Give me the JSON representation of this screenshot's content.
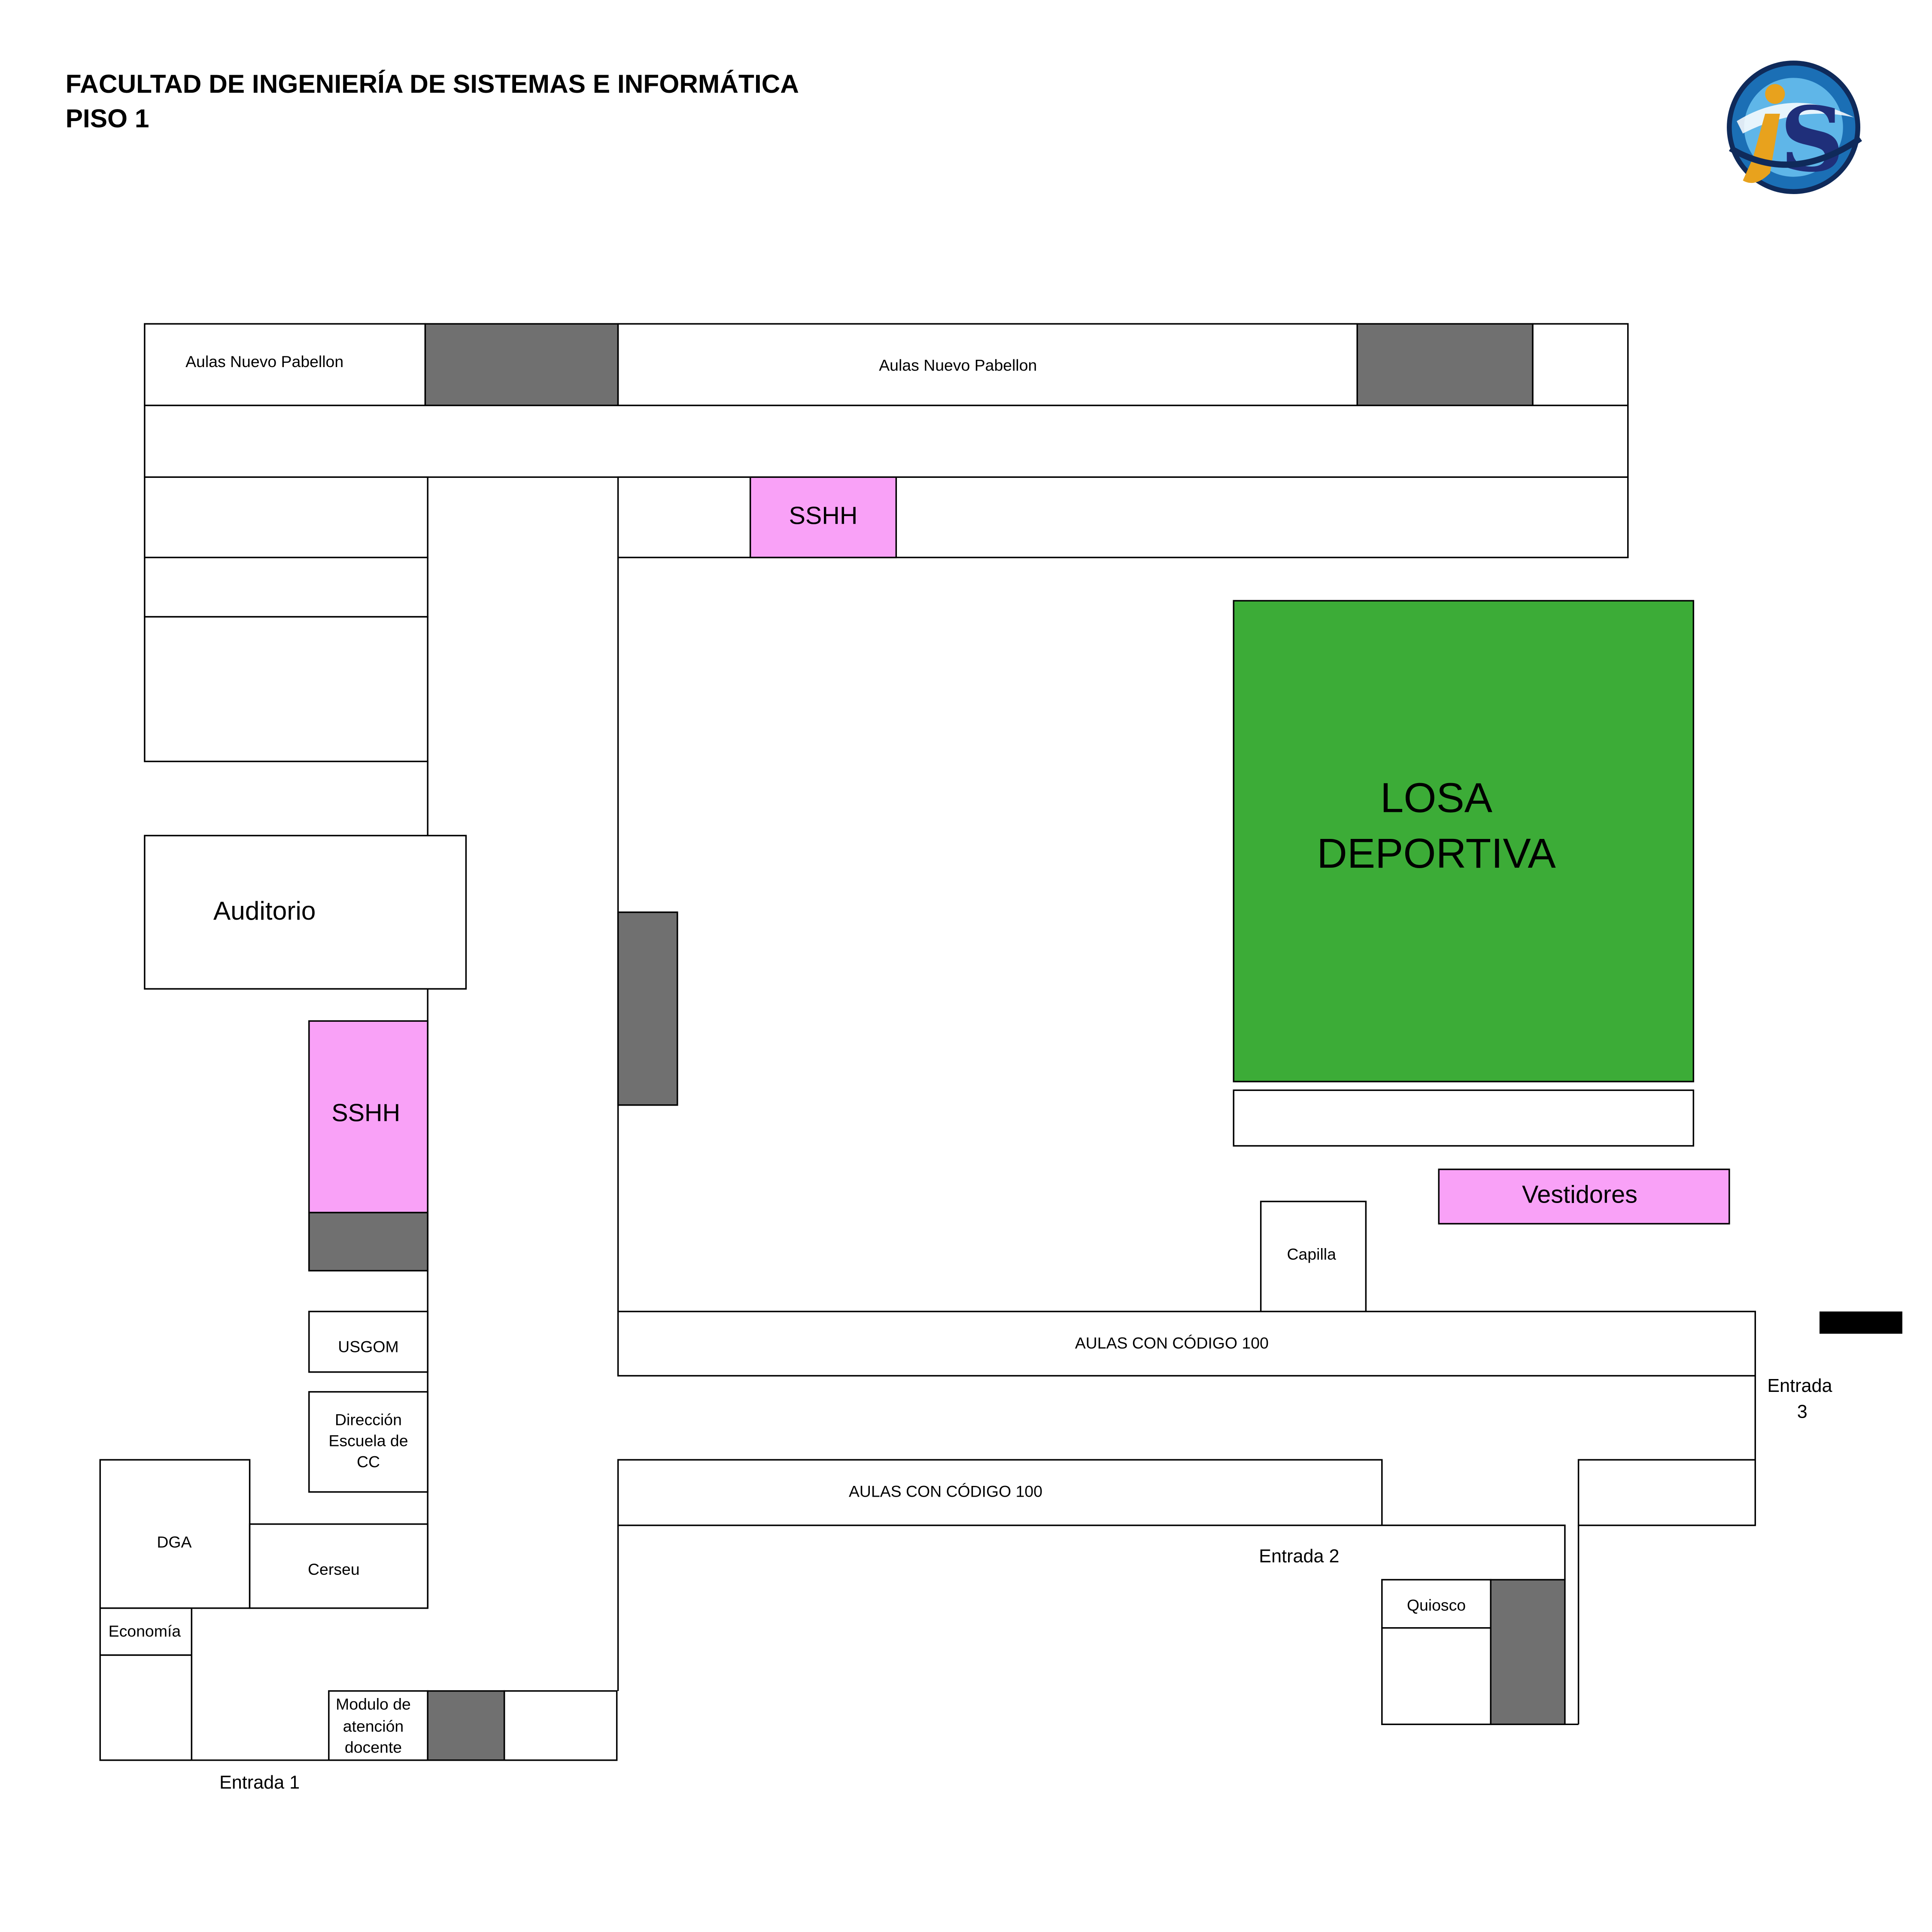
{
  "header": {
    "title": "FACULTAD DE INGENIERÍA DE SISTEMAS E INFORMÁTICA",
    "subtitle": "PISO 1"
  },
  "logo": {
    "icon": "fisi-logo-icon",
    "colors": {
      "ring": "#1b6fb5",
      "letter_i": "#e8a21d",
      "letter_s": "#1f2f7a"
    }
  },
  "colors": {
    "classroom": "#ffffff",
    "service": "#707070",
    "sshh": "#f9a1f7",
    "sports": "#3cac37"
  },
  "rooms": {
    "aulas_top_left": "Aulas Nuevo Pabellon",
    "aulas_top_center": "Aulas Nuevo Pabellon",
    "sshh_top": "SSHH",
    "sshh_left": "SSHH",
    "auditorio": "Auditorio",
    "losa_line1": "LOSA",
    "losa_line2": "DEPORTIVA",
    "vestidores": "Vestidores",
    "capilla": "Capilla",
    "aulas_100_upper": "AULAS CON CÓDIGO 100",
    "aulas_100_lower": "AULAS CON CÓDIGO 100",
    "usgom": "USGOM",
    "direccion_line1": "Dirección",
    "direccion_line2": "Escuela de",
    "direccion_line3": "CC",
    "dga": "DGA",
    "cerseu": "Cerseu",
    "economia": "Economía",
    "modulo_line1": "Modulo de",
    "modulo_line2": "atención",
    "modulo_line3": "docente",
    "quiosco": "Quiosco"
  },
  "entrances": {
    "entrada1": "Entrada 1",
    "entrada2": "Entrada 2",
    "entrada3_line1": "Entrada",
    "entrada3_line2": "3"
  }
}
